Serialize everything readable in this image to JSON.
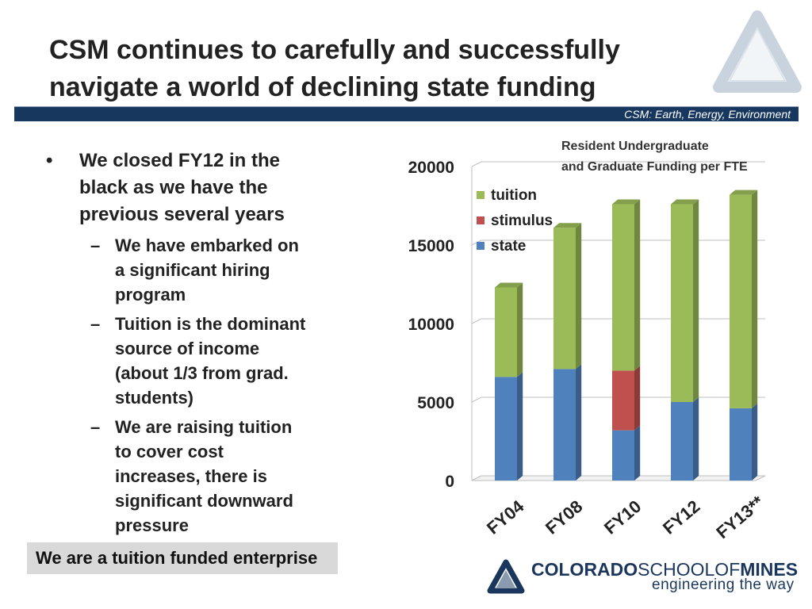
{
  "slide": {
    "title_line1": "CSM continues to carefully and successfully",
    "title_line2": "navigate a world of declining state funding",
    "band_text": "CSM: Earth, Energy, Environment",
    "footer_box": "We are a tuition funded enterprise",
    "brand": {
      "name_bold": "COLORADO",
      "name_light": "SCHOOLOF",
      "name_bold2": "MINES",
      "tagline": "engineering the way"
    }
  },
  "bullets": [
    {
      "level": 1,
      "marker": "•",
      "lines": [
        "We closed FY12 in the",
        "black as we have the",
        "previous several years"
      ]
    },
    {
      "level": 2,
      "marker": "–",
      "lines": [
        "We have embarked on",
        "a significant hiring",
        "program"
      ]
    },
    {
      "level": 2,
      "marker": "–",
      "lines": [
        "Tuition is the dominant",
        "source of income",
        "(about 1/3 from grad.",
        "students)"
      ]
    },
    {
      "level": 2,
      "marker": "–",
      "lines": [
        "We are raising tuition",
        "to cover cost",
        "increases, there is",
        "significant downward",
        "pressure"
      ]
    }
  ],
  "chart_data": {
    "type": "bar",
    "stacked": true,
    "title_lines": [
      "Resident Undergraduate",
      "and Graduate Funding per FTE"
    ],
    "categories": [
      "FY04",
      "FY08",
      "FY10",
      "FY12",
      "FY13**"
    ],
    "series": [
      {
        "name": "state",
        "color": "#4f81bd",
        "values": [
          6600,
          7100,
          3200,
          5000,
          4600
        ]
      },
      {
        "name": "stimulus",
        "color": "#c0504d",
        "values": [
          0,
          0,
          3800,
          0,
          0
        ]
      },
      {
        "name": "tuition",
        "color": "#9bbb59",
        "values": [
          5700,
          9000,
          10600,
          12600,
          13600
        ]
      }
    ],
    "legend_order": [
      "tuition",
      "stimulus",
      "state"
    ],
    "legend_position": "top-right",
    "ylim": [
      0,
      20000
    ],
    "yticks": [
      "0",
      "5000",
      "10000",
      "15000",
      "20000"
    ],
    "grid": true
  }
}
